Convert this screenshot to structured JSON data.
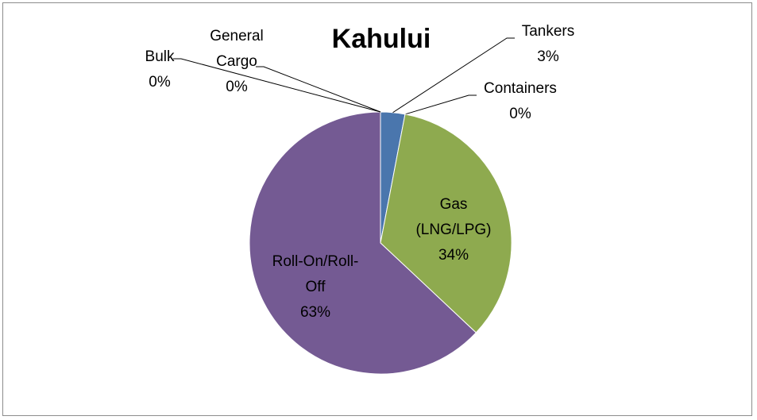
{
  "chart_data": {
    "type": "pie",
    "title": "Kahului",
    "categories": [
      "Tankers",
      "Containers",
      "Gas (LNG/LPG)",
      "Roll-On/Roll-Off",
      "Bulk",
      "General Cargo"
    ],
    "values": [
      3,
      0,
      34,
      63,
      0,
      0
    ],
    "value_labels": [
      "3%",
      "0%",
      "34%",
      "63%",
      "0%",
      "0%"
    ],
    "colors": [
      "#4a76ad",
      "#c0504d",
      "#8eaa4f",
      "#745a93",
      "#4bacc6",
      "#f79646"
    ]
  }
}
